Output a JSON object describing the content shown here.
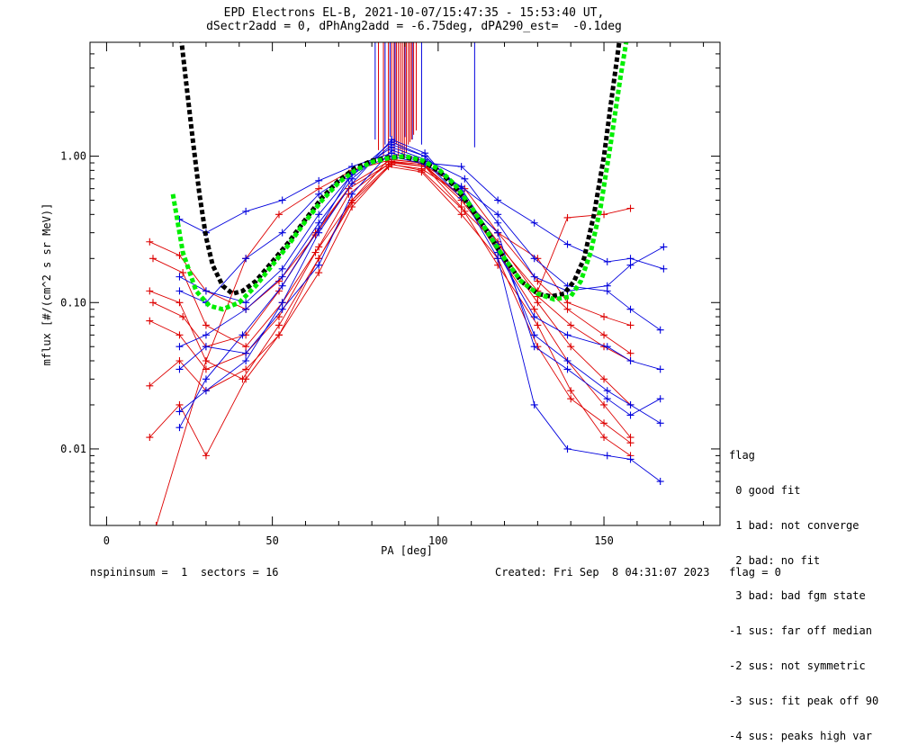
{
  "title_line1": "EPD Electrons EL-B, 2021-10-07/15:47:35 - 15:53:40 UT,",
  "title_line2": "dSectr2add = 0, dPhAng2add = -6.75deg, dPA290_est=  -0.1deg",
  "footer_left": "nspininsum =  1  sectors = 16",
  "footer_right": "Created: Fri Sep  8 04:31:07 2023   flag = 0",
  "legend": {
    "title": "flag",
    "items": [
      " 0 good fit",
      " 1 bad: not converge",
      " 2 bad: no fit",
      " 3 bad: bad fgm state",
      "-1 sus: far off median",
      "-2 sus: not symmetric",
      "-3 sus: fit peak off 90",
      "-4 sus: peaks high var"
    ]
  },
  "colors": {
    "red_series": "#dd0000",
    "blue_series": "#0000dd",
    "fit_green": "#00ee00",
    "fit_black": "#000000"
  },
  "chart_data": {
    "type": "line",
    "xlabel": "PA [deg]",
    "ylabel": "mflux [#/(cm^2 s sr MeV)]",
    "xlim": [
      -5,
      185
    ],
    "ylim": [
      0.003,
      6
    ],
    "yscale": "log",
    "x_ticks": [
      0,
      50,
      100,
      150
    ],
    "y_ticks": [
      0.01,
      0.1,
      1.0
    ],
    "y_tick_labels": [
      "0.01",
      "0.10",
      "1.00"
    ],
    "series": [
      {
        "color": "red",
        "x": [
          13,
          22,
          30,
          42,
          52,
          63,
          73,
          85,
          95,
          107,
          118,
          130,
          140,
          150,
          158
        ],
        "y": [
          0.26,
          0.21,
          0.12,
          0.09,
          0.14,
          0.29,
          0.6,
          0.88,
          0.82,
          0.55,
          0.26,
          0.11,
          0.07,
          0.05,
          0.04
        ]
      },
      {
        "color": "red",
        "x": [
          14,
          23,
          30,
          42,
          53,
          64,
          73,
          86,
          95,
          108,
          118,
          130,
          139,
          150,
          158
        ],
        "y": [
          0.2,
          0.16,
          0.07,
          0.05,
          0.1,
          0.24,
          0.55,
          0.92,
          0.88,
          0.6,
          0.3,
          0.14,
          0.09,
          0.06,
          0.045
        ]
      },
      {
        "color": "red",
        "x": [
          13,
          22,
          30,
          41,
          52,
          64,
          74,
          85,
          95,
          108,
          118,
          129,
          139,
          150,
          158
        ],
        "y": [
          0.12,
          0.1,
          0.04,
          0.03,
          0.07,
          0.2,
          0.5,
          0.95,
          0.9,
          0.5,
          0.22,
          0.09,
          0.04,
          0.02,
          0.012
        ]
      },
      {
        "color": "red",
        "x": [
          13,
          22,
          30,
          42,
          52,
          63,
          74,
          86,
          96,
          107,
          118,
          130,
          140,
          150,
          158
        ],
        "y": [
          0.075,
          0.06,
          0.035,
          0.045,
          0.08,
          0.22,
          0.5,
          0.9,
          0.85,
          0.45,
          0.18,
          0.07,
          0.025,
          0.012,
          0.009
        ]
      },
      {
        "color": "red",
        "x": [
          13,
          22,
          30,
          42,
          52,
          64,
          74,
          85,
          95,
          107,
          118,
          130,
          140,
          150,
          158
        ],
        "y": [
          0.027,
          0.04,
          0.025,
          0.035,
          0.06,
          0.16,
          0.45,
          0.85,
          0.78,
          0.4,
          0.2,
          0.05,
          0.022,
          0.015,
          0.011
        ]
      },
      {
        "color": "red",
        "x": [
          13,
          22,
          30,
          42,
          52,
          64,
          74,
          86,
          95,
          108,
          118,
          130,
          139,
          150,
          158
        ],
        "y": [
          0.012,
          0.02,
          0.009,
          0.03,
          0.06,
          0.2,
          0.48,
          0.88,
          0.8,
          0.42,
          0.25,
          0.12,
          0.38,
          0.4,
          0.44
        ]
      },
      {
        "color": "red",
        "x": [
          15,
          30,
          42,
          52,
          64,
          74,
          86,
          95,
          108,
          118,
          130,
          139,
          150,
          158
        ],
        "y": [
          0.003,
          0.04,
          0.2,
          0.4,
          0.6,
          0.8,
          0.95,
          0.9,
          0.5,
          0.3,
          0.2,
          0.1,
          0.08,
          0.07
        ]
      },
      {
        "color": "red",
        "x": [
          14,
          23,
          30,
          42,
          52,
          63,
          74,
          85,
          96,
          107,
          118,
          130,
          140,
          150,
          158
        ],
        "y": [
          0.1,
          0.08,
          0.05,
          0.06,
          0.12,
          0.3,
          0.65,
          0.92,
          0.85,
          0.5,
          0.24,
          0.1,
          0.05,
          0.03,
          0.02
        ]
      },
      {
        "color": "blue",
        "x": [
          22,
          30,
          42,
          53,
          64,
          74,
          86,
          96,
          107,
          118,
          129,
          139,
          151,
          158,
          167
        ],
        "y": [
          0.018,
          0.025,
          0.04,
          0.1,
          0.3,
          0.65,
          1.3,
          1.05,
          0.55,
          0.2,
          0.02,
          0.01,
          0.009,
          0.0085,
          0.006
        ]
      },
      {
        "color": "blue",
        "x": [
          22,
          30,
          42,
          53,
          64,
          74,
          86,
          96,
          107,
          118,
          129,
          139,
          151,
          158,
          167
        ],
        "y": [
          0.05,
          0.06,
          0.09,
          0.15,
          0.35,
          0.7,
          1.2,
          1.0,
          0.6,
          0.25,
          0.06,
          0.04,
          0.025,
          0.02,
          0.015
        ]
      },
      {
        "color": "blue",
        "x": [
          22,
          30,
          42,
          53,
          64,
          74,
          86,
          96,
          108,
          118,
          129,
          139,
          151,
          158,
          168
        ],
        "y": [
          0.15,
          0.12,
          0.1,
          0.17,
          0.4,
          0.75,
          1.15,
          0.95,
          0.7,
          0.35,
          0.15,
          0.12,
          0.13,
          0.18,
          0.24
        ]
      },
      {
        "color": "blue",
        "x": [
          22,
          30,
          42,
          53,
          64,
          74,
          86,
          96,
          107,
          118,
          129,
          139,
          151,
          158,
          168
        ],
        "y": [
          0.37,
          0.3,
          0.42,
          0.5,
          0.68,
          0.85,
          1.05,
          0.9,
          0.85,
          0.5,
          0.35,
          0.25,
          0.19,
          0.2,
          0.17
        ]
      },
      {
        "color": "blue",
        "x": [
          22,
          30,
          42,
          53,
          64,
          74,
          86,
          96,
          107,
          118,
          129,
          139,
          151,
          158,
          167
        ],
        "y": [
          0.035,
          0.05,
          0.045,
          0.09,
          0.18,
          0.55,
          1.1,
          0.92,
          0.52,
          0.3,
          0.05,
          0.035,
          0.022,
          0.017,
          0.022
        ]
      },
      {
        "color": "blue",
        "x": [
          22,
          30,
          41,
          53,
          64,
          73,
          86,
          96,
          107,
          118,
          129,
          139,
          151,
          158,
          167
        ],
        "y": [
          0.014,
          0.03,
          0.06,
          0.13,
          0.32,
          0.7,
          1.25,
          1.0,
          0.58,
          0.22,
          0.08,
          0.06,
          0.05,
          0.04,
          0.035
        ]
      },
      {
        "color": "blue",
        "x": [
          22,
          30,
          42,
          53,
          64,
          74,
          86,
          96,
          107,
          118,
          129,
          139,
          151,
          158,
          167
        ],
        "y": [
          0.12,
          0.1,
          0.2,
          0.3,
          0.55,
          0.78,
          1.0,
          0.88,
          0.62,
          0.4,
          0.2,
          0.13,
          0.12,
          0.09,
          0.065
        ]
      }
    ],
    "fit_green": {
      "x": [
        20,
        23,
        27,
        31,
        35,
        40,
        45,
        50,
        55,
        60,
        65,
        70,
        75,
        80,
        85,
        90,
        95,
        100,
        105,
        110,
        115,
        120,
        125,
        130,
        135,
        140,
        143,
        146,
        149,
        152,
        155,
        158
      ],
      "y": [
        0.55,
        0.22,
        0.12,
        0.095,
        0.09,
        0.1,
        0.13,
        0.18,
        0.25,
        0.36,
        0.5,
        0.66,
        0.8,
        0.91,
        0.97,
        1.0,
        0.94,
        0.82,
        0.64,
        0.45,
        0.3,
        0.2,
        0.14,
        0.115,
        0.105,
        0.11,
        0.14,
        0.22,
        0.45,
        1.2,
        3.5,
        9
      ]
    },
    "fit_black": {
      "x": [
        22,
        24,
        26,
        28,
        30,
        32,
        35,
        38,
        41,
        45,
        50,
        55,
        60,
        65,
        70,
        75,
        80,
        85,
        90,
        95,
        100,
        105,
        110,
        115,
        120,
        125,
        130,
        134,
        138,
        141,
        144,
        147,
        150,
        152,
        155
      ],
      "y": [
        8,
        3.2,
        1.3,
        0.55,
        0.28,
        0.18,
        0.13,
        0.115,
        0.12,
        0.14,
        0.19,
        0.26,
        0.37,
        0.52,
        0.68,
        0.83,
        0.93,
        0.98,
        0.99,
        0.93,
        0.8,
        0.62,
        0.44,
        0.3,
        0.2,
        0.14,
        0.115,
        0.11,
        0.115,
        0.14,
        0.2,
        0.4,
        1.0,
        2.2,
        7
      ]
    },
    "vertical_red_x": [
      82,
      83.5,
      85,
      86,
      86.7,
      87.4,
      88,
      88.6,
      89.2,
      89.8,
      90.4,
      91,
      91.5,
      92,
      92.6,
      93.4
    ],
    "vertical_red_from_y": [
      1.1,
      1.0,
      0.95,
      1.3,
      0.9,
      1.2,
      1.0,
      1.1,
      0.95,
      1.0,
      1.05,
      1.2,
      1.25,
      1.3,
      1.4,
      1.5
    ],
    "vertical_blue_x": [
      81,
      84,
      85.5,
      87,
      90,
      92.2,
      95,
      111
    ],
    "vertical_blue_from_y": [
      1.3,
      1.2,
      1.35,
      1.25,
      1.35,
      1.3,
      1.2,
      1.15
    ]
  }
}
